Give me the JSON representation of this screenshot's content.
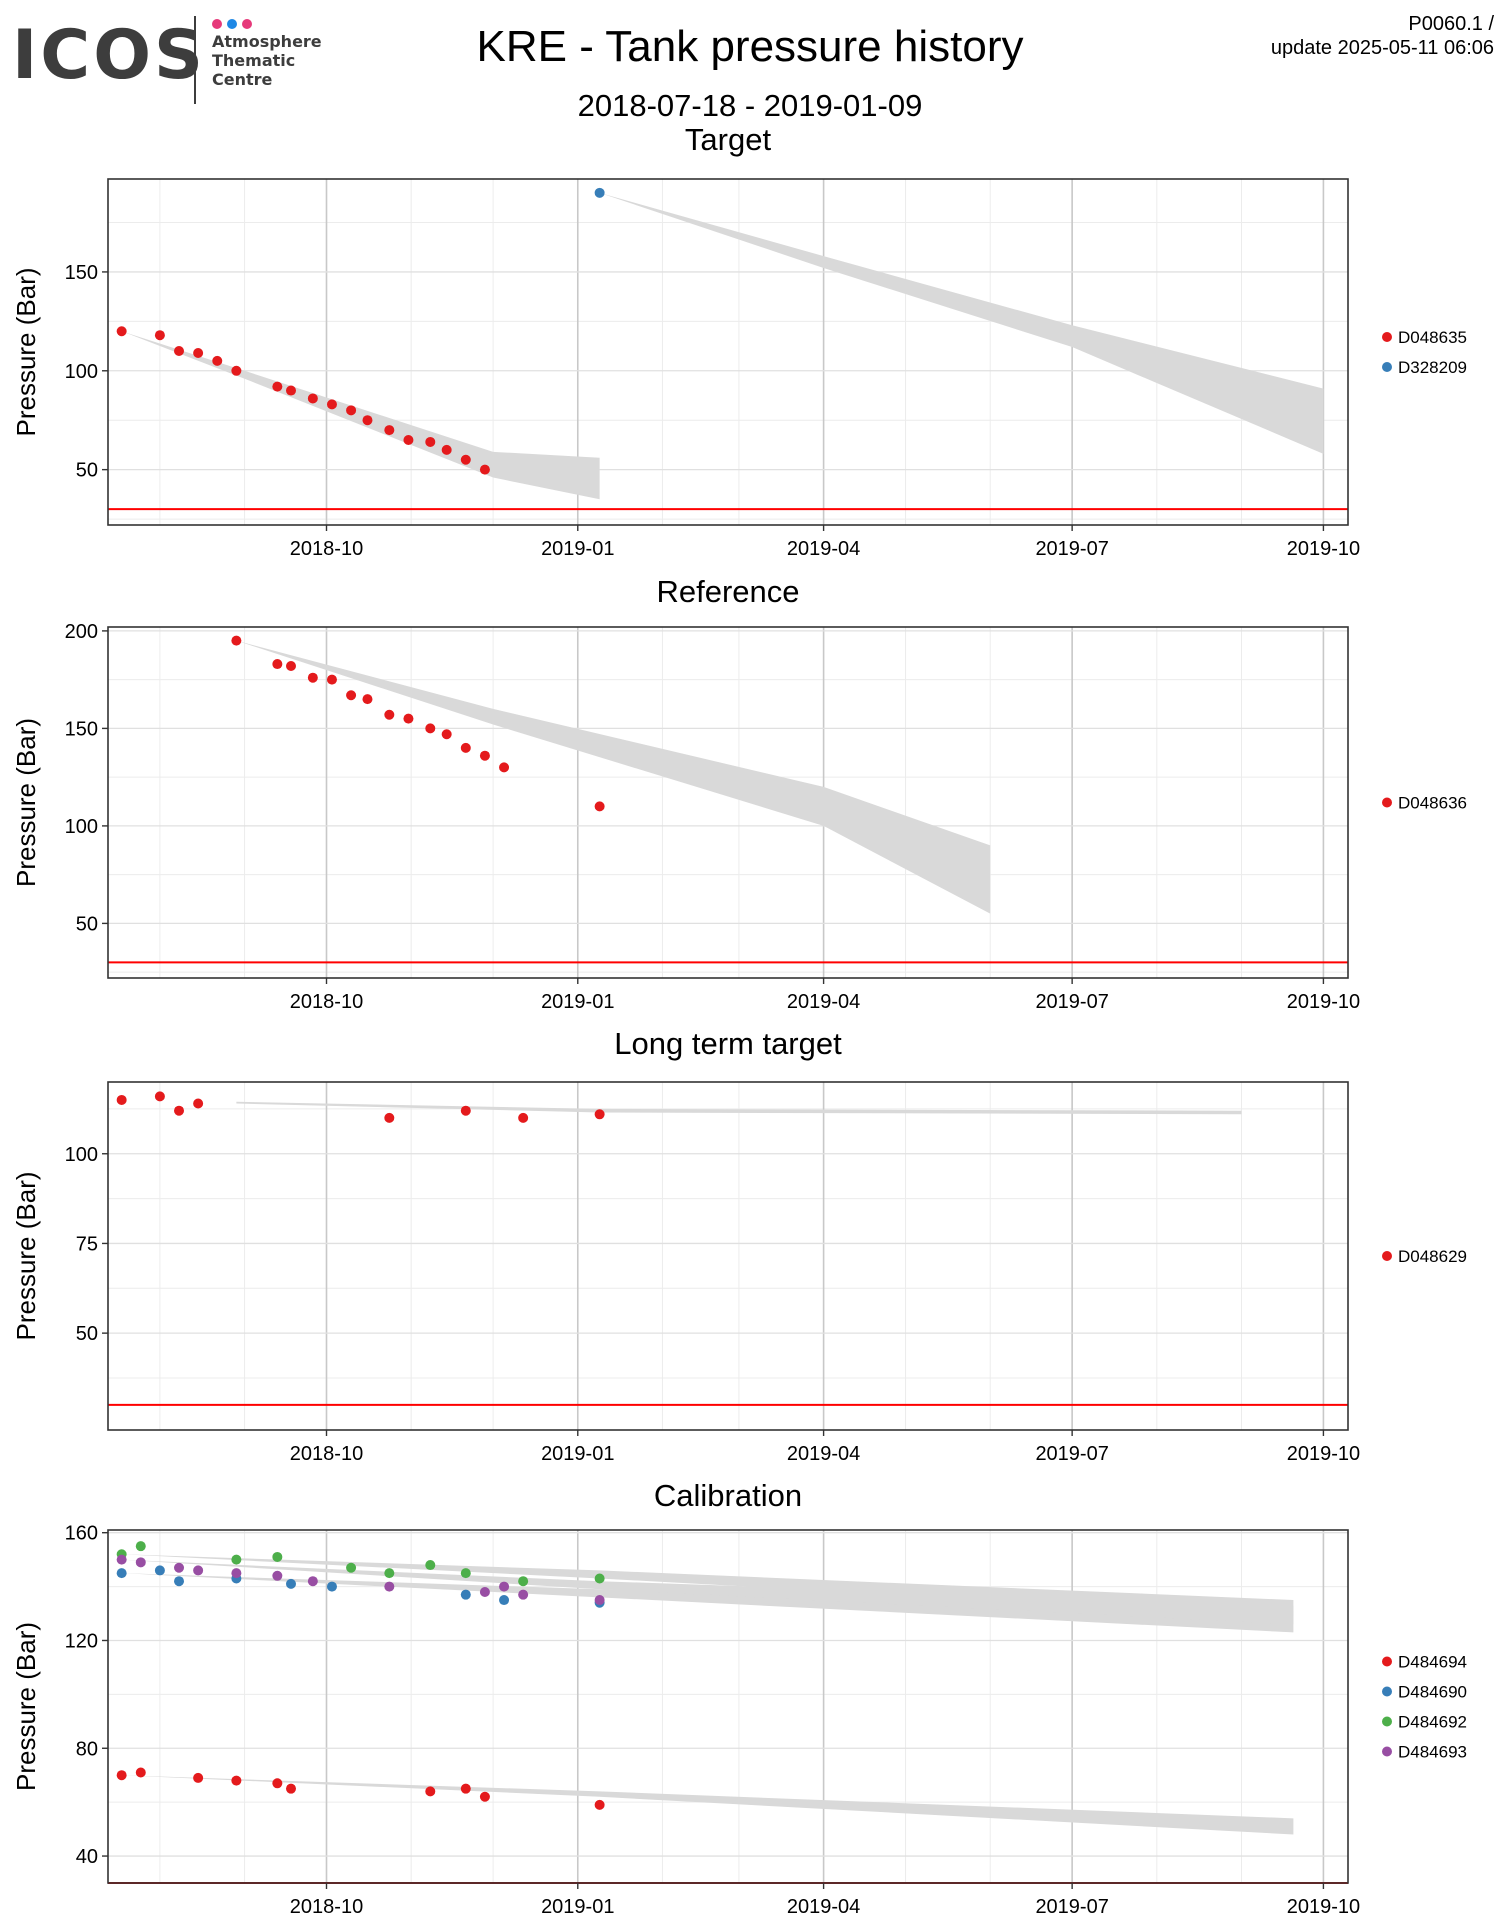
{
  "header": {
    "logo": {
      "wordmark": "ICOS",
      "org_lines": [
        "Atmosphere",
        "Thematic",
        "Centre"
      ],
      "dot_colors": [
        "#e6397a",
        "#1e88e5",
        "#e6397a"
      ]
    },
    "title": "KRE - Tank pressure history",
    "subtitle": "2018-07-18 - 2019-01-09",
    "version_line1": "P0060.1 /",
    "version_line2": "update  2025-05-11 06:06"
  },
  "colors": {
    "red": "#e41a1c",
    "blue": "#377eb8",
    "green": "#4daf4a",
    "purple": "#984ea3",
    "threshold": "#ff0000",
    "band": "#d9d9d9"
  },
  "chart_data": [
    {
      "type": "scatter",
      "title": "Target",
      "xlabel": "",
      "ylabel": "Pressure (Bar)",
      "xlim": [
        "2018-07-13",
        "2019-10-10"
      ],
      "ylim": [
        22,
        197
      ],
      "yticks": [
        50,
        100,
        150
      ],
      "xtick_labels": [
        "2018-10",
        "2019-01",
        "2019-04",
        "2019-07",
        "2019-10"
      ],
      "xticks": [
        "2018-10-01",
        "2019-01-01",
        "2019-04-01",
        "2019-07-01",
        "2019-10-01"
      ],
      "threshold": 30,
      "grid": true,
      "legend_position": "right",
      "series": [
        {
          "name": "D048635",
          "color": "#e41a1c",
          "x": [
            "2018-07-18",
            "2018-08-01",
            "2018-08-08",
            "2018-08-15",
            "2018-08-22",
            "2018-08-29",
            "2018-09-13",
            "2018-09-18",
            "2018-09-26",
            "2018-10-03",
            "2018-10-10",
            "2018-10-16",
            "2018-10-24",
            "2018-10-31",
            "2018-11-08",
            "2018-11-14",
            "2018-11-21",
            "2018-11-28"
          ],
          "y": [
            120,
            118,
            110,
            109,
            105,
            100,
            92,
            90,
            86,
            83,
            80,
            75,
            70,
            65,
            64,
            60,
            55,
            50
          ],
          "band": [
            [
              "2018-07-18",
              120,
              120
            ],
            [
              "2018-09-01",
              100,
              96
            ],
            [
              "2018-12-01",
              59,
              46
            ],
            [
              "2019-01-09",
              56,
              35
            ]
          ]
        },
        {
          "name": "D328209",
          "color": "#377eb8",
          "x": [
            "2019-01-09"
          ],
          "y": [
            190
          ],
          "band": [
            [
              "2019-01-09",
              190,
              190
            ],
            [
              "2019-04-01",
              158,
              152
            ],
            [
              "2019-07-01",
              123,
              112
            ],
            [
              "2019-10-01",
              91,
              58
            ]
          ]
        }
      ]
    },
    {
      "type": "scatter",
      "title": "Reference",
      "xlabel": "",
      "ylabel": "Pressure (Bar)",
      "xlim": [
        "2018-07-13",
        "2019-10-10"
      ],
      "ylim": [
        22,
        202
      ],
      "yticks": [
        50,
        100,
        150,
        200
      ],
      "xtick_labels": [
        "2018-10",
        "2019-01",
        "2019-04",
        "2019-07",
        "2019-10"
      ],
      "xticks": [
        "2018-10-01",
        "2019-01-01",
        "2019-04-01",
        "2019-07-01",
        "2019-10-01"
      ],
      "threshold": 30,
      "grid": true,
      "legend_position": "right",
      "series": [
        {
          "name": "D048636",
          "color": "#e41a1c",
          "x": [
            "2018-08-29",
            "2018-09-13",
            "2018-09-18",
            "2018-09-26",
            "2018-10-03",
            "2018-10-10",
            "2018-10-16",
            "2018-10-24",
            "2018-10-31",
            "2018-11-08",
            "2018-11-14",
            "2018-11-21",
            "2018-11-28",
            "2018-12-05",
            "2019-01-09"
          ],
          "y": [
            195,
            183,
            182,
            176,
            175,
            167,
            165,
            157,
            155,
            150,
            147,
            140,
            136,
            130,
            110
          ],
          "band": [
            [
              "2018-08-29",
              195,
              195
            ],
            [
              "2018-12-01",
              160,
              152
            ],
            [
              "2019-04-01",
              120,
              100
            ],
            [
              "2019-06-01",
              90,
              55
            ]
          ]
        }
      ]
    },
    {
      "type": "scatter",
      "title": "Long term target",
      "xlabel": "",
      "ylabel": "Pressure (Bar)",
      "xlim": [
        "2018-07-13",
        "2019-10-10"
      ],
      "ylim": [
        23,
        120
      ],
      "yticks": [
        50,
        75,
        100
      ],
      "xtick_labels": [
        "2018-10",
        "2019-01",
        "2019-04",
        "2019-07",
        "2019-10"
      ],
      "xticks": [
        "2018-10-01",
        "2019-01-01",
        "2019-04-01",
        "2019-07-01",
        "2019-10-01"
      ],
      "threshold": 30,
      "grid": true,
      "legend_position": "right",
      "series": [
        {
          "name": "D048629",
          "color": "#e41a1c",
          "x": [
            "2018-07-18",
            "2018-08-01",
            "2018-08-08",
            "2018-08-15",
            "2018-10-24",
            "2018-11-21",
            "2018-12-12",
            "2019-01-09"
          ],
          "y": [
            115,
            116,
            112,
            114,
            110,
            112,
            110,
            111
          ],
          "band": [
            [
              "2018-08-29",
              114.5,
              114
            ],
            [
              "2019-01-09",
              112.5,
              111.5
            ],
            [
              "2019-09-01",
              112,
              111
            ]
          ]
        }
      ]
    },
    {
      "type": "scatter",
      "title": "Calibration",
      "xlabel": "",
      "ylabel": "Pressure (Bar)",
      "xlim": [
        "2018-07-13",
        "2019-10-10"
      ],
      "ylim": [
        30,
        161
      ],
      "yticks": [
        40,
        80,
        120,
        160
      ],
      "xtick_labels": [
        "2018-10",
        "2019-01",
        "2019-04",
        "2019-07",
        "2019-10"
      ],
      "xticks": [
        "2018-10-01",
        "2019-01-01",
        "2019-04-01",
        "2019-07-01",
        "2019-10-01"
      ],
      "threshold": 30,
      "grid": true,
      "legend_position": "right",
      "series": [
        {
          "name": "D484694",
          "color": "#e41a1c",
          "x": [
            "2018-07-18",
            "2018-07-25",
            "2018-08-15",
            "2018-08-29",
            "2018-09-13",
            "2018-09-18",
            "2018-11-08",
            "2018-11-21",
            "2018-11-28",
            "2019-01-09"
          ],
          "y": [
            70,
            71,
            69,
            68,
            67,
            65,
            64,
            65,
            62,
            59
          ],
          "band": [
            [
              "2018-07-18",
              70,
              70
            ],
            [
              "2019-01-09",
              64,
              62
            ],
            [
              "2019-09-20",
              54,
              48
            ]
          ]
        },
        {
          "name": "D484690",
          "color": "#377eb8",
          "x": [
            "2018-07-18",
            "2018-08-01",
            "2018-08-08",
            "2018-08-29",
            "2018-09-18",
            "2018-10-03",
            "2018-11-21",
            "2018-12-05",
            "2019-01-09"
          ],
          "y": [
            145,
            146,
            142,
            143,
            141,
            140,
            137,
            135,
            134
          ],
          "band": [
            [
              "2018-07-18",
              145,
              145
            ],
            [
              "2019-01-09",
              139,
              136
            ],
            [
              "2019-09-20",
              131,
              123
            ]
          ]
        },
        {
          "name": "D484692",
          "color": "#4daf4a",
          "x": [
            "2018-07-18",
            "2018-07-25",
            "2018-08-29",
            "2018-09-13",
            "2018-10-10",
            "2018-10-24",
            "2018-11-08",
            "2018-11-21",
            "2018-12-12",
            "2019-01-09"
          ],
          "y": [
            152,
            155,
            150,
            151,
            147,
            145,
            148,
            145,
            142,
            143
          ],
          "band": [
            [
              "2018-07-18",
              152,
              152
            ],
            [
              "2019-01-09",
              146,
              143
            ],
            [
              "2019-09-20",
              135,
              129
            ]
          ]
        },
        {
          "name": "D484693",
          "color": "#984ea3",
          "x": [
            "2018-07-18",
            "2018-07-25",
            "2018-08-08",
            "2018-08-15",
            "2018-08-29",
            "2018-09-13",
            "2018-09-26",
            "2018-10-24",
            "2018-11-28",
            "2018-12-05",
            "2018-12-12",
            "2019-01-09"
          ],
          "y": [
            150,
            149,
            147,
            146,
            145,
            144,
            142,
            140,
            138,
            140,
            137,
            135
          ],
          "band": [
            [
              "2018-07-18",
              150,
              150
            ],
            [
              "2019-01-09",
              142,
              139
            ],
            [
              "2019-09-20",
              133,
              126
            ]
          ]
        }
      ]
    }
  ]
}
